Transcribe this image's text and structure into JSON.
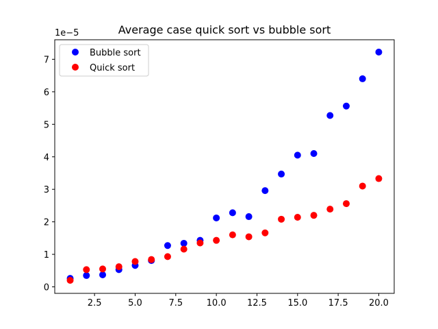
{
  "chart_data": {
    "type": "scatter",
    "title": "Average case quick sort vs bubble sort",
    "xlabel": "",
    "ylabel": "",
    "y_offset_label": "1e−5",
    "xlim": [
      0.05,
      20.95
    ],
    "ylim": [
      -2e-06,
      7.6e-05
    ],
    "xticks": [
      2.5,
      5.0,
      7.5,
      10.0,
      12.5,
      15.0,
      17.5,
      20.0
    ],
    "xtick_labels": [
      "2.5",
      "5.0",
      "7.5",
      "10.0",
      "12.5",
      "15.0",
      "17.5",
      "20.0"
    ],
    "yticks": [
      0,
      1e-05,
      2e-05,
      3e-05,
      4e-05,
      5e-05,
      6e-05,
      7e-05
    ],
    "ytick_labels": [
      "0",
      "1",
      "2",
      "3",
      "4",
      "5",
      "6",
      "7"
    ],
    "grid": false,
    "legend_position": "top-left",
    "series": [
      {
        "name": "Bubble sort",
        "color": "#0000ff",
        "x": [
          1,
          2,
          3,
          4,
          5,
          6,
          7,
          8,
          9,
          10,
          11,
          12,
          13,
          14,
          15,
          16,
          17,
          18,
          19,
          20
        ],
        "y": [
          2.6e-06,
          3.5e-06,
          3.7e-06,
          5.3e-06,
          6.6e-06,
          8.1e-06,
          1.27e-05,
          1.34e-05,
          1.43e-05,
          2.12e-05,
          2.28e-05,
          2.16e-05,
          2.96e-05,
          3.47e-05,
          4.05e-05,
          4.1e-05,
          5.27e-05,
          5.56e-05,
          6.4e-05,
          7.22e-05
        ]
      },
      {
        "name": "Quick sort",
        "color": "#ff0000",
        "x": [
          1,
          2,
          3,
          4,
          5,
          6,
          7,
          8,
          9,
          10,
          11,
          12,
          13,
          14,
          15,
          16,
          17,
          18,
          19,
          20
        ],
        "y": [
          2e-06,
          5.3e-06,
          5.5e-06,
          6.2e-06,
          7.8e-06,
          8.4e-06,
          9.3e-06,
          1.16e-05,
          1.35e-05,
          1.43e-05,
          1.6e-05,
          1.54e-05,
          1.66e-05,
          2.08e-05,
          2.14e-05,
          2.2e-05,
          2.39e-05,
          2.56e-05,
          3.1e-05,
          3.33e-05
        ]
      }
    ]
  }
}
